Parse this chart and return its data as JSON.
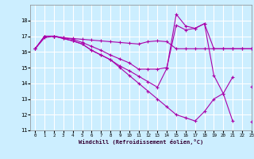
{
  "xlabel": "Windchill (Refroidissement éolien,°C)",
  "bg_color": "#cceeff",
  "line_color": "#aa00aa",
  "grid_color": "#ffffff",
  "series1_y": [
    16.2,
    16.9,
    17.0,
    16.9,
    16.85,
    16.8,
    16.75,
    16.7,
    16.65,
    16.6,
    16.55,
    16.5,
    16.65,
    16.7,
    16.65,
    16.2,
    16.2,
    16.2,
    16.2,
    16.2,
    16.2,
    16.2,
    16.2,
    16.2
  ],
  "series2_y": [
    16.2,
    17.0,
    17.0,
    16.9,
    16.8,
    16.6,
    16.35,
    16.1,
    15.8,
    15.55,
    15.3,
    14.9,
    14.9,
    14.9,
    15.0,
    17.7,
    17.4,
    17.5,
    17.8,
    16.2,
    16.2,
    16.2,
    16.2,
    16.2
  ],
  "series3_y": [
    16.2,
    17.0,
    17.0,
    16.85,
    16.7,
    16.5,
    16.1,
    15.8,
    15.5,
    15.1,
    14.8,
    14.45,
    14.1,
    13.75,
    14.95,
    18.4,
    17.65,
    17.5,
    17.8,
    14.5,
    13.35,
    14.4,
    null,
    11.55
  ],
  "series4_y": [
    16.2,
    17.0,
    17.0,
    16.85,
    16.7,
    16.5,
    16.1,
    15.8,
    15.5,
    15.0,
    14.5,
    14.0,
    13.5,
    13.0,
    12.5,
    12.0,
    11.8,
    11.6,
    12.2,
    13.0,
    13.35,
    11.6,
    null,
    13.8
  ],
  "ylim": [
    11,
    19
  ],
  "xlim": [
    -0.5,
    23
  ],
  "yticks": [
    11,
    12,
    13,
    14,
    15,
    16,
    17,
    18
  ],
  "xticks": [
    0,
    1,
    2,
    3,
    4,
    5,
    6,
    7,
    8,
    9,
    10,
    11,
    12,
    13,
    14,
    15,
    16,
    17,
    18,
    19,
    20,
    21,
    22,
    23
  ]
}
